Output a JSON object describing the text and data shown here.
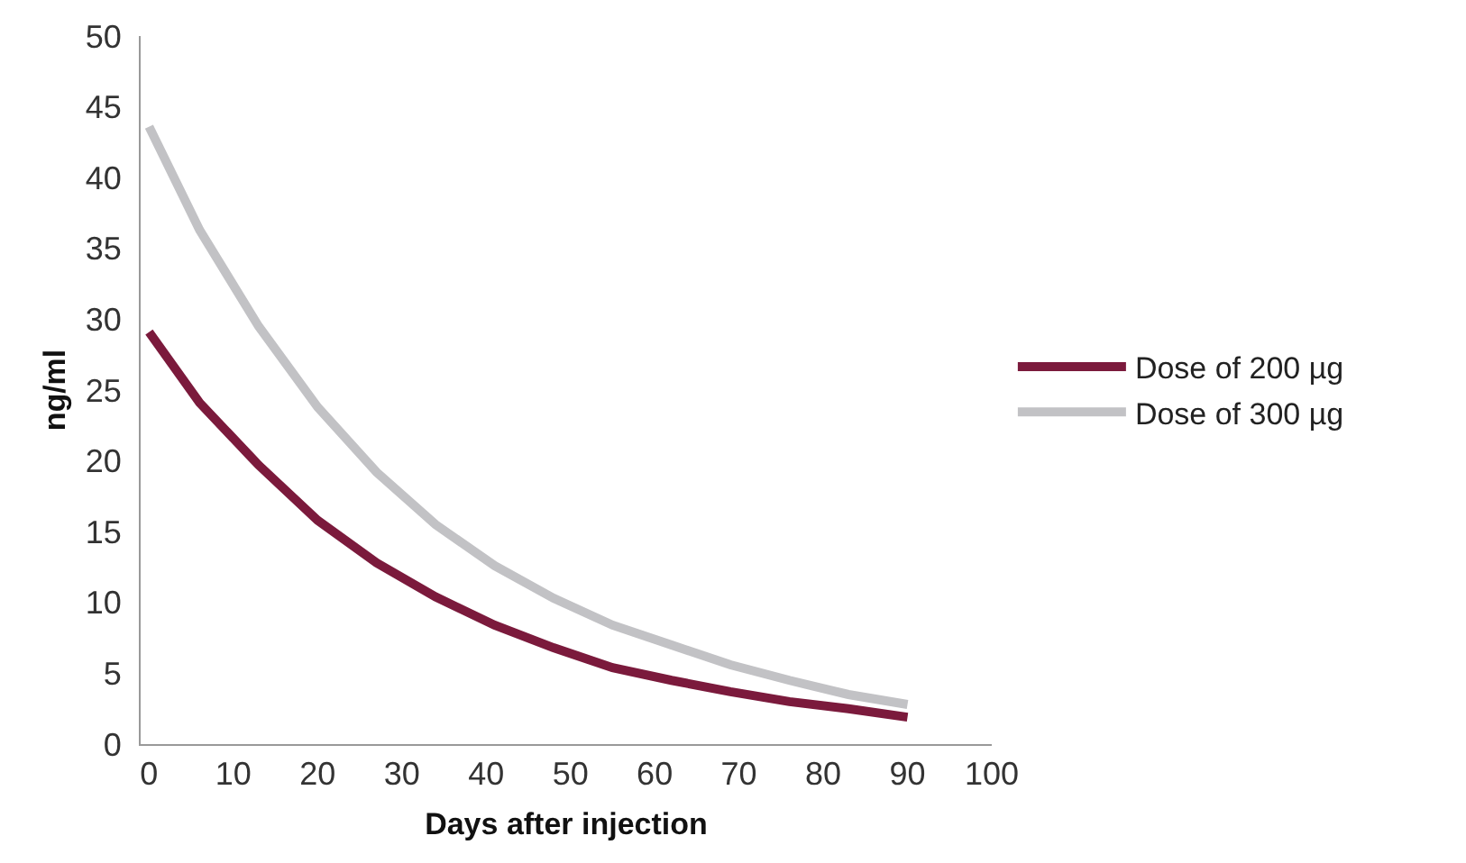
{
  "chart_data": {
    "type": "line",
    "xlabel": "Days after injection",
    "ylabel": "ng/ml",
    "x": [
      0,
      6,
      13,
      20,
      27,
      34,
      41,
      48,
      55,
      62,
      69,
      76,
      83,
      90
    ],
    "series": [
      {
        "name": "Dose of 200 µg",
        "color": "#7b1a3c",
        "values": [
          29.1,
          24.1,
          19.7,
          15.8,
          12.8,
          10.4,
          8.4,
          6.8,
          5.4,
          4.5,
          3.7,
          3.0,
          2.5,
          1.9
        ]
      },
      {
        "name": "Dose of 300 µg",
        "color": "#c2c2c5",
        "values": [
          43.6,
          36.3,
          29.5,
          23.8,
          19.2,
          15.5,
          12.6,
          10.3,
          8.4,
          7.0,
          5.6,
          4.5,
          3.5,
          2.8
        ]
      }
    ],
    "xlim": [
      -1,
      100
    ],
    "xticks": [
      0,
      10,
      20,
      30,
      40,
      50,
      60,
      70,
      80,
      90,
      100
    ],
    "ylim": [
      0,
      50
    ],
    "yticks": [
      0,
      5,
      10,
      15,
      20,
      25,
      30,
      35,
      40,
      45,
      50
    ],
    "grid": false,
    "legend": "right",
    "marker": "none",
    "line_style": "solid"
  }
}
